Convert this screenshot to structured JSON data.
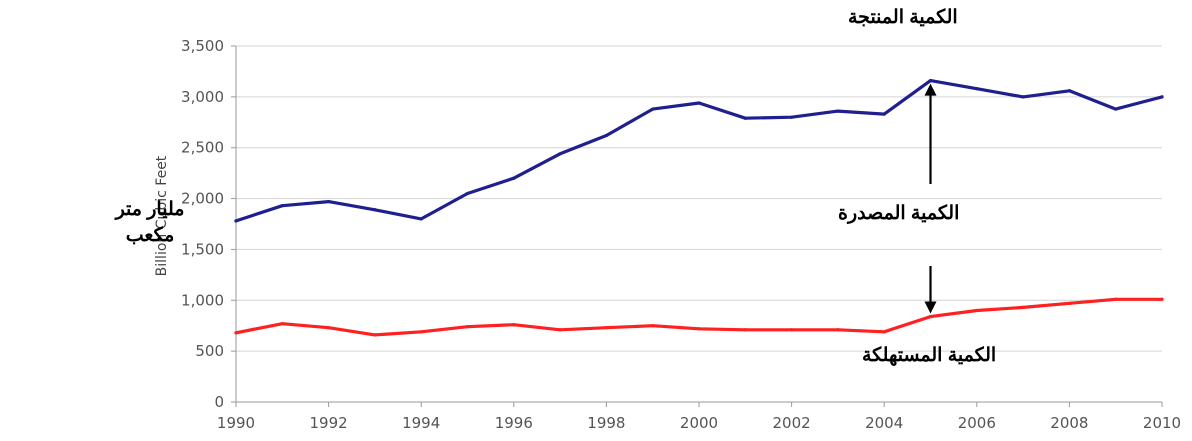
{
  "chart_data": {
    "type": "line",
    "x": [
      1990,
      1991,
      1992,
      1993,
      1994,
      1995,
      1996,
      1997,
      1998,
      1999,
      2000,
      2001,
      2002,
      2003,
      2004,
      2005,
      2006,
      2007,
      2008,
      2009,
      2010
    ],
    "series": [
      {
        "name": "الكمية المنتجة",
        "color": "#1f1f8f",
        "values": [
          1780,
          1930,
          1970,
          1890,
          1800,
          2050,
          2200,
          2440,
          2620,
          2880,
          2940,
          2790,
          2800,
          2860,
          2830,
          3160,
          3080,
          3000,
          3060,
          2880,
          3000
        ]
      },
      {
        "name": "الكمية المستهلكة",
        "color": "#ff2020",
        "values": [
          680,
          770,
          730,
          660,
          690,
          740,
          760,
          710,
          730,
          750,
          720,
          710,
          710,
          710,
          690,
          840,
          900,
          930,
          970,
          1010,
          1010
        ]
      }
    ],
    "xticks": [
      "1990",
      "1992",
      "1994",
      "1996",
      "1998",
      "2000",
      "2002",
      "2004",
      "2006",
      "2008",
      "2010"
    ],
    "yticks": [
      "0",
      "500",
      "1,000",
      "1,500",
      "2,000",
      "2,500",
      "3,000",
      "3,500"
    ],
    "xlim": [
      1990,
      2010
    ],
    "ylim": [
      0,
      3500
    ],
    "ylabel": "Billion Cubic Feet",
    "ylabel_arabic": "مليار متر مكعب",
    "annotation_exported": "الكمية المصدرة",
    "arrow_year": 2005,
    "grid": "horizontal",
    "axis_color": "#9a9a9a"
  }
}
